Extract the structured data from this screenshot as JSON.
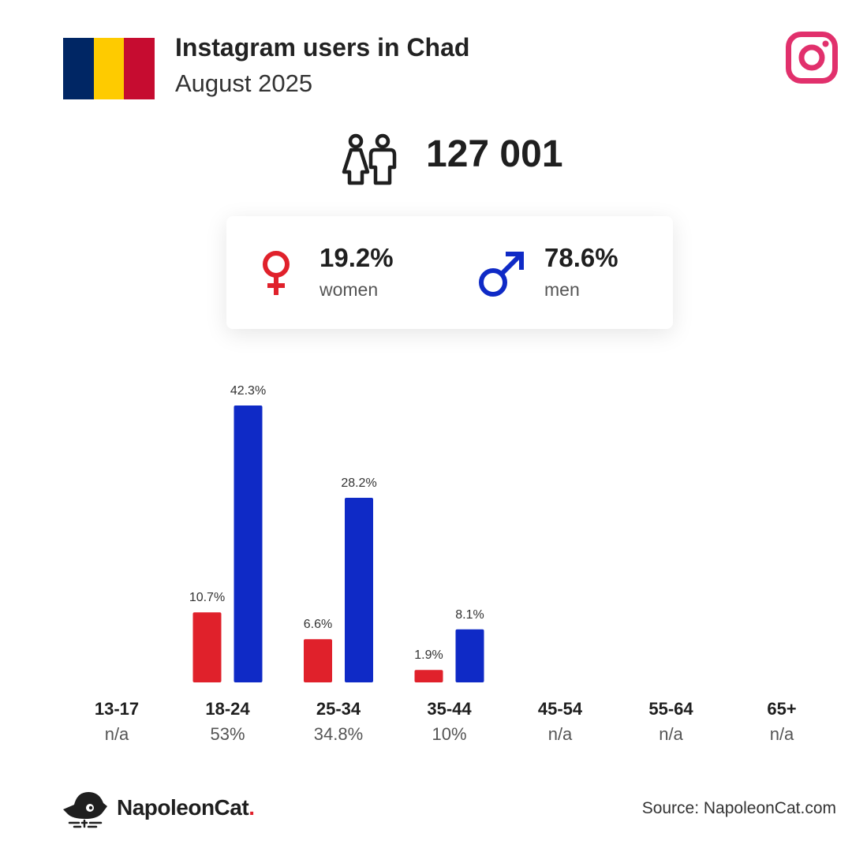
{
  "header": {
    "title": "Instagram users in Chad",
    "subtitle": "August 2025",
    "flag_colors": [
      "#002664",
      "#FECB00",
      "#C60C30"
    ],
    "platform_icon": "instagram-icon"
  },
  "total": {
    "icon": "users-icon",
    "value": "127 001"
  },
  "gender": {
    "women": {
      "icon": "female-symbol-icon",
      "value": "19.2%",
      "label": "women",
      "color": "#E0212B"
    },
    "men": {
      "icon": "male-symbol-icon",
      "value": "78.6%",
      "label": "men",
      "color": "#0F2AC6"
    }
  },
  "chart_data": {
    "type": "bar",
    "categories": [
      "13-17",
      "18-24",
      "25-34",
      "35-44",
      "45-54",
      "55-64",
      "65+"
    ],
    "category_totals": [
      "n/a",
      "53%",
      "34.8%",
      "10%",
      "n/a",
      "n/a",
      "n/a"
    ],
    "series": [
      {
        "name": "women",
        "color": "#E0212B",
        "values": [
          null,
          10.7,
          6.6,
          1.9,
          null,
          null,
          null
        ],
        "labels": [
          "",
          "10.7%",
          "6.6%",
          "1.9%",
          "",
          "",
          ""
        ]
      },
      {
        "name": "men",
        "color": "#0F2AC6",
        "values": [
          null,
          42.3,
          28.2,
          8.1,
          null,
          null,
          null
        ],
        "labels": [
          "",
          "42.3%",
          "28.2%",
          "8.1%",
          "",
          "",
          ""
        ]
      }
    ],
    "ylim": [
      0,
      42.3
    ],
    "grid": false,
    "legend": "none"
  },
  "footer": {
    "brand_name": "NapoleonCat",
    "brand_dot": ".",
    "brand_icon": "napoleoncat-logo-icon",
    "source": "Source: NapoleonCat.com"
  }
}
